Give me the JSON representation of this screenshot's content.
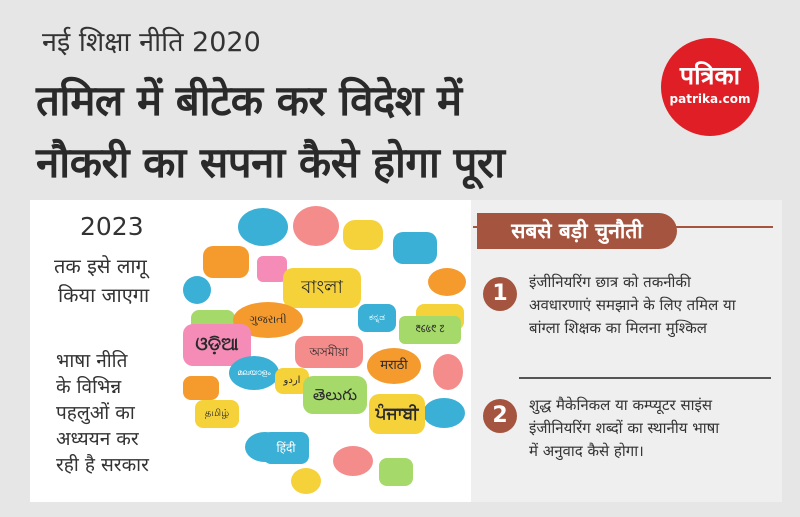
{
  "header": {
    "kicker": "नई शिक्षा नीति 2020",
    "headline_line1": "तमिल में बीटेक कर विदेश में",
    "headline_line2": "नौकरी का सपना कैसे होगा पूरा"
  },
  "logo": {
    "name": "पत्रिका",
    "site": "patrika.com"
  },
  "left_panel": {
    "year": "2023",
    "implementation": [
      "तक इसे लागू",
      "किया जाएगा"
    ],
    "study": [
      "भाषा नीति",
      "के विभिन्न",
      "पहलुओं का",
      "अध्ययन कर",
      "रही है सरकार"
    ]
  },
  "languages": {
    "bengali": "বাংলা",
    "odia": "ଓଡ଼ିଆ",
    "gujarati": "ગુજરાતી",
    "assamese": "অসমীয়া",
    "marathi": "मराठी",
    "telugu": "తెలుగు",
    "punjabi": "ਪੰਜਾਬੀ",
    "tamil": "தமிழ்",
    "hindi": "हिंदी",
    "kannada": "ಕನ್ನಡ",
    "malayalam": "മലയാളം",
    "urdu": "اردو",
    "glyph_script": "᱓᱔᱕᱖ ᱗"
  },
  "right_panel": {
    "banner": "सबसे बड़ी चुनौती",
    "points": [
      {
        "num": "1",
        "lines": [
          "इंजीनियरिंग छात्र को तकनीकी",
          "अवधारणाएं समझाने के लिए तमिल या",
          "बांग्ला शिक्षक का मिलना मुश्किल"
        ]
      },
      {
        "num": "2",
        "lines": [
          "शुद्ध मैकेनिकल या कम्प्यूटर साइंस",
          "इंजीनियरिंग शब्दों का स्थानीय भाषा",
          "में अनुवाद कैसे होगा।"
        ]
      }
    ]
  },
  "colors": {
    "accent": "#a5543f",
    "logo_red": "#e01e26",
    "background": "#e6e6e6"
  }
}
